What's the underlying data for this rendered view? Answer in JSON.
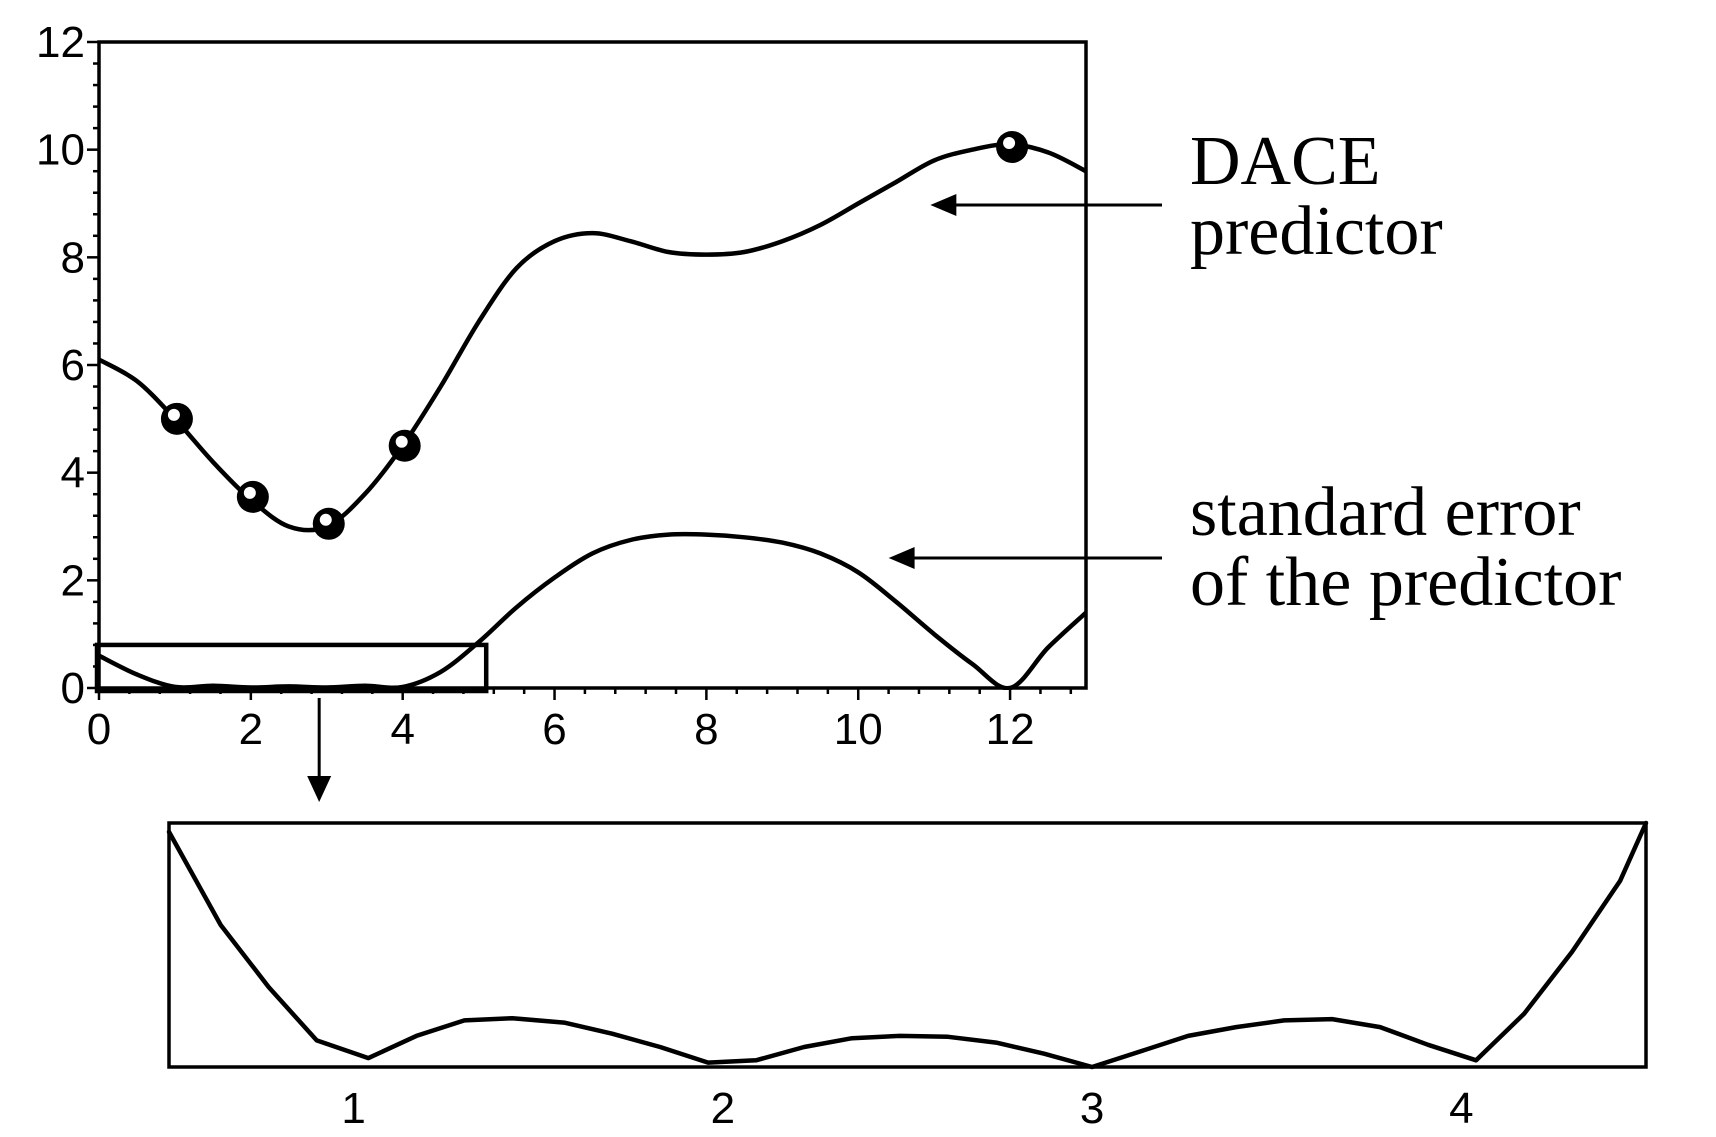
{
  "chart_data": [
    {
      "type": "line",
      "title": "",
      "xlabel": "",
      "ylabel": "",
      "xlim": [
        0,
        13
      ],
      "ylim": [
        0,
        12
      ],
      "x_ticks": [
        "0",
        "2",
        "4",
        "6",
        "8",
        "10",
        "12"
      ],
      "y_ticks": [
        "0",
        "2",
        "4",
        "6",
        "8",
        "10",
        "12"
      ],
      "series": [
        {
          "name": "DACE predictor",
          "x": [
            0,
            0.5,
            1,
            1.5,
            2,
            2.5,
            3,
            3.5,
            4,
            4.5,
            5,
            5.5,
            6,
            6.5,
            7,
            7.5,
            8,
            8.5,
            9,
            9.5,
            10,
            10.5,
            11,
            11.5,
            12,
            12.5,
            13
          ],
          "y": [
            6.1,
            5.7,
            5.0,
            4.2,
            3.5,
            3.0,
            3.0,
            3.6,
            4.5,
            5.6,
            6.8,
            7.8,
            8.3,
            8.45,
            8.3,
            8.1,
            8.05,
            8.1,
            8.3,
            8.6,
            9.0,
            9.4,
            9.8,
            10.0,
            10.1,
            9.95,
            9.6
          ]
        },
        {
          "name": "standard error of the predictor",
          "x": [
            0,
            0.5,
            1,
            1.5,
            2,
            2.5,
            3,
            3.5,
            4,
            4.5,
            5,
            5.5,
            6,
            6.5,
            7,
            7.5,
            8,
            8.5,
            9,
            9.5,
            10,
            10.5,
            11,
            11.5,
            12,
            12.5,
            13
          ],
          "y": [
            0.6,
            0.25,
            0.02,
            0.04,
            0.01,
            0.03,
            0.01,
            0.04,
            0.02,
            0.3,
            0.85,
            1.5,
            2.05,
            2.5,
            2.75,
            2.85,
            2.85,
            2.8,
            2.7,
            2.5,
            2.15,
            1.6,
            1.0,
            0.45,
            0.0,
            0.75,
            1.4
          ]
        }
      ],
      "sample_points": {
        "x": [
          1,
          2,
          3,
          4,
          12
        ],
        "y": [
          5.0,
          3.55,
          3.05,
          4.5,
          10.05
        ]
      },
      "annotations": [
        {
          "target": "DACE predictor",
          "lines": [
            "DACE",
            "predictor"
          ]
        },
        {
          "target": "standard error of the predictor",
          "lines": [
            "standard error",
            "of the predictor"
          ]
        }
      ],
      "zoom_region": {
        "x": [
          0,
          5.1
        ],
        "y": [
          0,
          0.8
        ]
      },
      "grid": false,
      "legend": "none"
    },
    {
      "type": "line",
      "title": "",
      "xlabel": "",
      "ylabel": "",
      "xlim": [
        0.5,
        4.5
      ],
      "ylim": [
        0,
        0.55
      ],
      "x_ticks": [
        "1",
        "2",
        "3",
        "4"
      ],
      "series": [
        {
          "name": "standard error of the predictor",
          "x": [
            0.5,
            0.64,
            0.77,
            0.9,
            1.04,
            1.17,
            1.3,
            1.43,
            1.57,
            1.7,
            1.83,
            1.96,
            2.09,
            2.22,
            2.35,
            2.48,
            2.61,
            2.74,
            2.87,
            3.0,
            3.13,
            3.26,
            3.39,
            3.52,
            3.65,
            3.78,
            3.91,
            4.04,
            4.17,
            4.3,
            4.43,
            4.5
          ],
          "y": [
            0.53,
            0.32,
            0.18,
            0.06,
            0.02,
            0.07,
            0.105,
            0.11,
            0.1,
            0.075,
            0.045,
            0.01,
            0.015,
            0.045,
            0.065,
            0.07,
            0.068,
            0.055,
            0.03,
            0.0,
            0.035,
            0.07,
            0.09,
            0.105,
            0.108,
            0.09,
            0.05,
            0.015,
            0.12,
            0.26,
            0.42,
            0.55
          ]
        }
      ],
      "grid": false,
      "legend": "none"
    }
  ]
}
